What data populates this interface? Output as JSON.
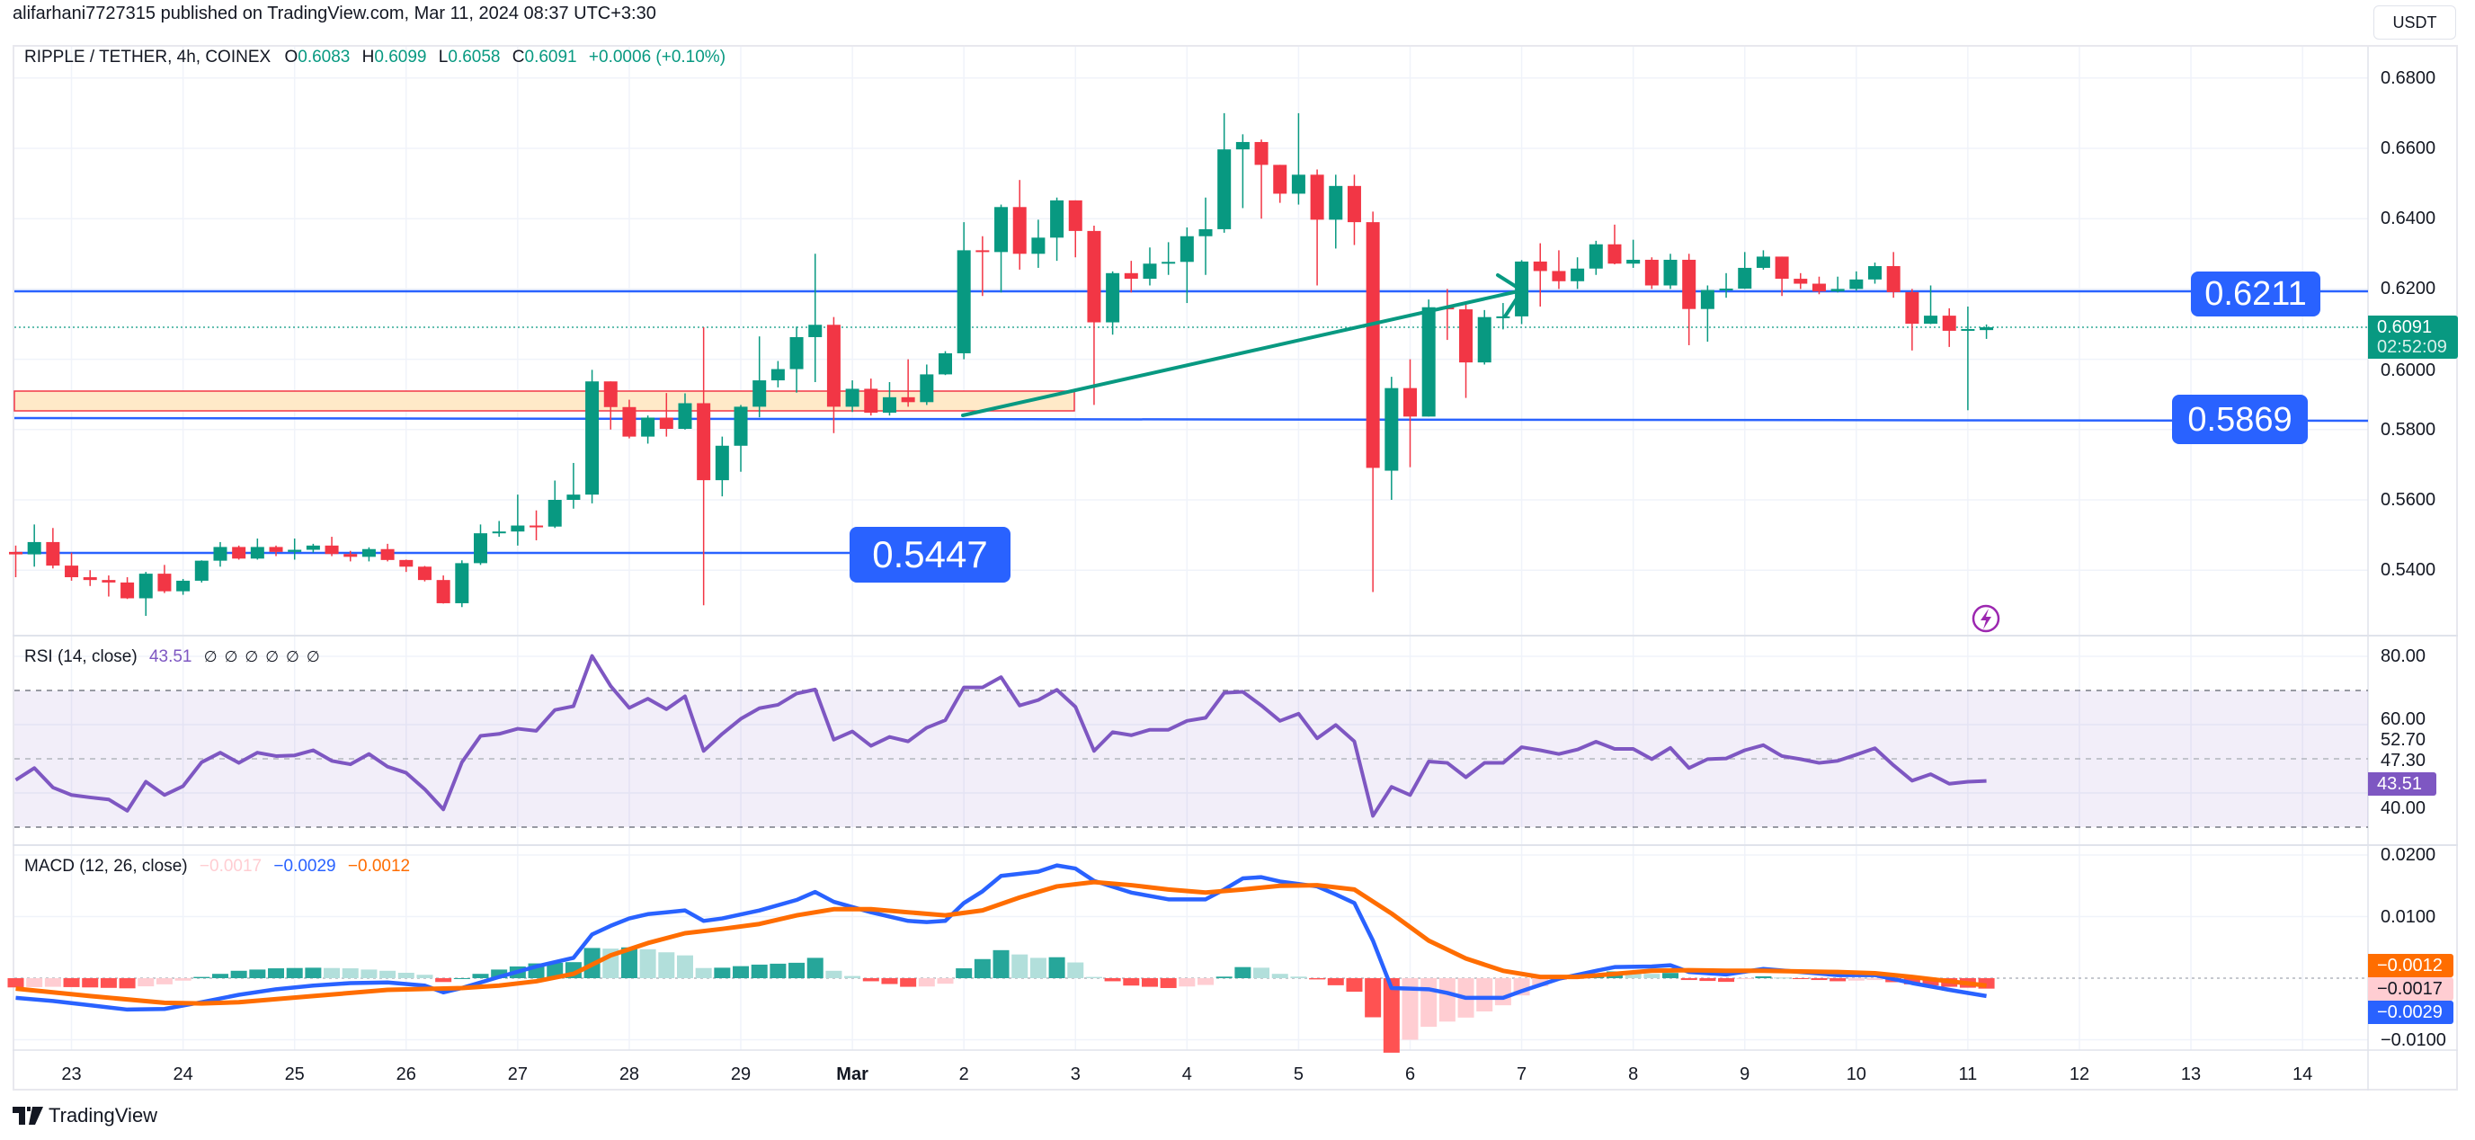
{
  "published": "alifarhani7727315 published on TradingView.com, Mar 11, 2024 08:37 UTC+3:30",
  "legend": {
    "symbol": "RIPPLE / TETHER, 4h, COINEX",
    "o_label": "O",
    "o": "0.6083",
    "h_label": "H",
    "h": "0.6099",
    "l_label": "L",
    "l": "0.6058",
    "c_label": "C",
    "c": "0.6091",
    "change": "+0.0006 (+0.10%)"
  },
  "currency_button": "USDT",
  "price_axis": [
    "0.6800",
    "0.6600",
    "0.6400",
    "0.6200",
    "0.6000",
    "0.5800",
    "0.5600",
    "0.5400"
  ],
  "price_axis_values": [
    0.68,
    0.66,
    0.64,
    0.62,
    0.6,
    0.58,
    0.56,
    0.54
  ],
  "current_price": {
    "value": "0.6091",
    "countdown": "02:52:09",
    "numeric": 0.6091
  },
  "drawings": {
    "levels": [
      {
        "label": "0.6211",
        "value": 0.6211
      },
      {
        "label": "0.5869",
        "value": 0.5869
      },
      {
        "label": "0.5447",
        "value": 0.5447
      }
    ],
    "zone": {
      "top": 0.604,
      "bottom": 0.587
    },
    "trend_arrow": {
      "from_index": 46,
      "from_price": 0.5855,
      "to_index": 74.5,
      "to_price": 0.62
    }
  },
  "rsi": {
    "title": "RSI (14, close)",
    "value": "43.51",
    "nulls": [
      "∅",
      "∅",
      "∅",
      "∅",
      "∅",
      "∅"
    ],
    "axis": [
      "80.00",
      "60.00",
      "52.70",
      "47.30",
      "40.00"
    ],
    "axis_values": [
      80,
      60,
      52.7,
      47.3,
      40
    ],
    "upper_band": 70,
    "lower_band": 30,
    "middle": 50,
    "color": "#7e57c2"
  },
  "macd": {
    "title": "MACD (12, 26, close)",
    "hist_value": "−0.0017",
    "macd_value": "−0.0029",
    "signal_value": "−0.0012",
    "axis": [
      "0.0200",
      "0.0100",
      "−0.0100"
    ],
    "axis_values": [
      0.02,
      0.01,
      -0.01
    ],
    "colors": {
      "macd": "#2962ff",
      "signal": "#ff6d00",
      "hist_up_strong": "#26a69a",
      "hist_up_weak": "#b2dfdb",
      "hist_down_strong": "#ff5252",
      "hist_down_weak": "#ffcdd2"
    }
  },
  "x_axis": [
    "23",
    "24",
    "25",
    "26",
    "27",
    "28",
    "29",
    "Mar",
    "2",
    "3",
    "4",
    "5",
    "6",
    "7",
    "8",
    "9",
    "10",
    "11",
    "12",
    "13",
    "14"
  ],
  "footer": "TradingView",
  "colors": {
    "up": "#089981",
    "down": "#f23645",
    "level": "#2962ff",
    "zone_fill": "#ffe9c8",
    "zone_border": "#f23645",
    "arrow": "#089981"
  },
  "chart_data": {
    "type": "candlestick",
    "title": "RIPPLE / TETHER, 4h, COINEX",
    "interval": "4h",
    "first_candle": "Feb 22 12:00",
    "ylim": [
      0.528,
      0.68
    ],
    "candles_ohlc": [
      [
        0.5452,
        0.547,
        0.538,
        0.5445
      ],
      [
        0.5445,
        0.553,
        0.541,
        0.548
      ],
      [
        0.548,
        0.552,
        0.5405,
        0.5413
      ],
      [
        0.5413,
        0.545,
        0.537,
        0.538
      ],
      [
        0.538,
        0.54,
        0.5355,
        0.5372
      ],
      [
        0.5372,
        0.5385,
        0.5325,
        0.5365
      ],
      [
        0.5365,
        0.538,
        0.5318,
        0.532
      ],
      [
        0.532,
        0.5395,
        0.527,
        0.539
      ],
      [
        0.539,
        0.5415,
        0.5335,
        0.534
      ],
      [
        0.534,
        0.5375,
        0.533,
        0.537
      ],
      [
        0.537,
        0.5428,
        0.5365,
        0.5427
      ],
      [
        0.5427,
        0.548,
        0.541,
        0.5466
      ],
      [
        0.5466,
        0.547,
        0.543,
        0.5433
      ],
      [
        0.5433,
        0.549,
        0.543,
        0.5466
      ],
      [
        0.5466,
        0.547,
        0.544,
        0.5452
      ],
      [
        0.5452,
        0.549,
        0.543,
        0.5458
      ],
      [
        0.5458,
        0.5475,
        0.545,
        0.547
      ],
      [
        0.547,
        0.5495,
        0.544,
        0.5446
      ],
      [
        0.5446,
        0.5455,
        0.5425,
        0.5438
      ],
      [
        0.5438,
        0.5465,
        0.5425,
        0.546
      ],
      [
        0.546,
        0.5475,
        0.5425,
        0.5429
      ],
      [
        0.5429,
        0.543,
        0.5395,
        0.541
      ],
      [
        0.541,
        0.5412,
        0.5368,
        0.5372
      ],
      [
        0.5372,
        0.5385,
        0.5305,
        0.5306
      ],
      [
        0.5306,
        0.5428,
        0.5295,
        0.542
      ],
      [
        0.542,
        0.553,
        0.5415,
        0.5505
      ],
      [
        0.5505,
        0.554,
        0.5495,
        0.551
      ],
      [
        0.551,
        0.5615,
        0.547,
        0.5527
      ],
      [
        0.5527,
        0.557,
        0.5485,
        0.5524
      ],
      [
        0.5524,
        0.5655,
        0.552,
        0.56
      ],
      [
        0.56,
        0.5705,
        0.5575,
        0.5615
      ],
      [
        0.5615,
        0.597,
        0.559,
        0.5937
      ],
      [
        0.5937,
        0.5937,
        0.58,
        0.5864
      ],
      [
        0.5864,
        0.5885,
        0.5775,
        0.578
      ],
      [
        0.578,
        0.584,
        0.576,
        0.5834
      ],
      [
        0.5834,
        0.5904,
        0.578,
        0.5802
      ],
      [
        0.5802,
        0.5903,
        0.58,
        0.5875
      ],
      [
        0.5875,
        0.6091,
        0.53,
        0.5656
      ],
      [
        0.5656,
        0.578,
        0.561,
        0.5754
      ],
      [
        0.5754,
        0.587,
        0.568,
        0.5865
      ],
      [
        0.5865,
        0.6065,
        0.5835,
        0.594
      ],
      [
        0.594,
        0.5995,
        0.592,
        0.5972
      ],
      [
        0.5972,
        0.6093,
        0.5905,
        0.6063
      ],
      [
        0.6063,
        0.63,
        0.5935,
        0.6098
      ],
      [
        0.6098,
        0.612,
        0.579,
        0.5865
      ],
      [
        0.5865,
        0.594,
        0.585,
        0.5916
      ],
      [
        0.5916,
        0.5945,
        0.584,
        0.5848
      ],
      [
        0.5848,
        0.5935,
        0.584,
        0.5892
      ],
      [
        0.5892,
        0.6,
        0.5865,
        0.5878
      ],
      [
        0.5878,
        0.5985,
        0.587,
        0.5957
      ],
      [
        0.5957,
        0.6023,
        0.5955,
        0.6017
      ],
      [
        0.6017,
        0.639,
        0.6,
        0.631
      ],
      [
        0.631,
        0.635,
        0.618,
        0.6305
      ],
      [
        0.6305,
        0.644,
        0.619,
        0.6433
      ],
      [
        0.6433,
        0.651,
        0.6255,
        0.63
      ],
      [
        0.63,
        0.6397,
        0.626,
        0.6346
      ],
      [
        0.6346,
        0.646,
        0.628,
        0.6452
      ],
      [
        0.6452,
        0.6452,
        0.629,
        0.6365
      ],
      [
        0.6365,
        0.638,
        0.587,
        0.6105
      ],
      [
        0.6105,
        0.625,
        0.607,
        0.6245
      ],
      [
        0.6245,
        0.628,
        0.619,
        0.6229
      ],
      [
        0.6229,
        0.6318,
        0.621,
        0.6272
      ],
      [
        0.6272,
        0.6333,
        0.624,
        0.6277
      ],
      [
        0.6277,
        0.6375,
        0.616,
        0.635
      ],
      [
        0.635,
        0.646,
        0.624,
        0.637
      ],
      [
        0.637,
        0.67,
        0.636,
        0.6597
      ],
      [
        0.6597,
        0.664,
        0.643,
        0.6618
      ],
      [
        0.6618,
        0.6625,
        0.64,
        0.6553
      ],
      [
        0.6553,
        0.6553,
        0.6445,
        0.6471
      ],
      [
        0.6471,
        0.67,
        0.644,
        0.6525
      ],
      [
        0.6525,
        0.654,
        0.621,
        0.6397
      ],
      [
        0.6397,
        0.6525,
        0.6315,
        0.6493
      ],
      [
        0.6493,
        0.6525,
        0.6325,
        0.639
      ],
      [
        0.639,
        0.642,
        0.5338,
        0.5691
      ],
      [
        0.5683,
        0.595,
        0.56,
        0.5918
      ],
      [
        0.5918,
        0.6,
        0.5693,
        0.5837
      ],
      [
        0.5837,
        0.617,
        0.5837,
        0.6148
      ],
      [
        0.6148,
        0.62,
        0.6055,
        0.6142
      ],
      [
        0.6142,
        0.616,
        0.589,
        0.5991
      ],
      [
        0.5991,
        0.614,
        0.5985,
        0.612
      ],
      [
        0.612,
        0.616,
        0.6085,
        0.6122
      ],
      [
        0.6122,
        0.6282,
        0.61,
        0.6278
      ],
      [
        0.6278,
        0.633,
        0.615,
        0.6251
      ],
      [
        0.6251,
        0.631,
        0.62,
        0.6222
      ],
      [
        0.6222,
        0.629,
        0.62,
        0.6258
      ],
      [
        0.6258,
        0.6337,
        0.624,
        0.6327
      ],
      [
        0.6327,
        0.6383,
        0.627,
        0.6272
      ],
      [
        0.6272,
        0.634,
        0.626,
        0.6283
      ],
      [
        0.6283,
        0.629,
        0.62,
        0.621
      ],
      [
        0.621,
        0.63,
        0.62,
        0.6283
      ],
      [
        0.6283,
        0.63,
        0.604,
        0.6143
      ],
      [
        0.6143,
        0.621,
        0.605,
        0.6197
      ],
      [
        0.6197,
        0.6245,
        0.6175,
        0.6201
      ],
      [
        0.6201,
        0.6305,
        0.62,
        0.626
      ],
      [
        0.626,
        0.631,
        0.6255,
        0.6292
      ],
      [
        0.6292,
        0.6292,
        0.618,
        0.6229
      ],
      [
        0.6229,
        0.6245,
        0.62,
        0.6215
      ],
      [
        0.6215,
        0.6235,
        0.6185,
        0.6193
      ],
      [
        0.6193,
        0.6235,
        0.619,
        0.62
      ],
      [
        0.62,
        0.625,
        0.6195,
        0.6227
      ],
      [
        0.6227,
        0.6275,
        0.6215,
        0.6265
      ],
      [
        0.6265,
        0.6305,
        0.6175,
        0.6191
      ],
      [
        0.6191,
        0.62,
        0.6025,
        0.6101
      ],
      [
        0.6101,
        0.621,
        0.61,
        0.6124
      ],
      [
        0.6124,
        0.6145,
        0.6035,
        0.6081
      ],
      [
        0.6081,
        0.615,
        0.5855,
        0.6086
      ],
      [
        0.6083,
        0.6099,
        0.6058,
        0.6091
      ]
    ],
    "rsi": [
      43.8,
      47.3,
      41.6,
      39.4,
      38.7,
      38.1,
      34.8,
      43.3,
      39.4,
      42,
      49,
      51.8,
      48.8,
      51.8,
      50.8,
      51,
      52.5,
      49.4,
      48.4,
      51.4,
      47.7,
      45.9,
      41.1,
      35.2,
      49,
      56.7,
      57.3,
      58.8,
      58.2,
      64.3,
      65.4,
      80.1,
      71.3,
      64.9,
      67.6,
      64.5,
      68.3,
      52.3,
      57.3,
      61.7,
      64.8,
      65.8,
      69.1,
      70.3,
      55.6,
      58,
      53.8,
      56.4,
      55.1,
      59.1,
      61.3,
      70.9,
      70.9,
      73.9,
      65.6,
      67.2,
      70.2,
      65.2,
      52.3,
      57.8,
      56.9,
      58.5,
      58.5,
      61.1,
      62,
      69.3,
      69.6,
      65.6,
      61.1,
      63.2,
      56,
      59.9,
      55.1,
      33.3,
      41.8,
      39.4,
      49.2,
      48.8,
      44.6,
      48.8,
      48.8,
      53.4,
      52.5,
      51.4,
      52.7,
      55,
      52.9,
      52.9,
      49.9,
      53.2,
      47.3,
      49.9,
      50.1,
      52.5,
      54,
      50.8,
      49.9,
      48.8,
      49.4,
      51.2,
      53.1,
      48.1,
      43.6,
      45.5,
      42.7,
      43.3,
      43.51
    ],
    "macd_points": [
      [
        0,
        -0.0032
      ],
      [
        2,
        -0.0037
      ],
      [
        4,
        -0.0044
      ],
      [
        6,
        -0.0051
      ],
      [
        8,
        -0.005
      ],
      [
        10,
        -0.0039
      ],
      [
        12,
        -0.0027
      ],
      [
        14,
        -0.0018
      ],
      [
        16,
        -0.0012
      ],
      [
        18,
        -0.0008
      ],
      [
        20,
        -0.0007
      ],
      [
        22,
        -0.0012
      ],
      [
        23,
        -0.0023
      ],
      [
        24,
        -0.0016
      ],
      [
        26,
        0.0002
      ],
      [
        28,
        0.0019
      ],
      [
        30,
        0.0033
      ],
      [
        31,
        0.0071
      ],
      [
        32,
        0.0085
      ],
      [
        33,
        0.0097
      ],
      [
        34,
        0.0104
      ],
      [
        35,
        0.0107
      ],
      [
        36,
        0.011
      ],
      [
        37,
        0.0093
      ],
      [
        38,
        0.0097
      ],
      [
        40,
        0.011
      ],
      [
        42,
        0.0127
      ],
      [
        43,
        0.014
      ],
      [
        44,
        0.0124
      ],
      [
        46,
        0.0107
      ],
      [
        48,
        0.0093
      ],
      [
        49,
        0.0091
      ],
      [
        50,
        0.0093
      ],
      [
        51,
        0.0122
      ],
      [
        52,
        0.0141
      ],
      [
        53,
        0.0166
      ],
      [
        55,
        0.0173
      ],
      [
        56,
        0.0183
      ],
      [
        57,
        0.0178
      ],
      [
        58,
        0.0158
      ],
      [
        60,
        0.0139
      ],
      [
        62,
        0.0128
      ],
      [
        64,
        0.0128
      ],
      [
        65,
        0.0144
      ],
      [
        66,
        0.0162
      ],
      [
        67,
        0.0164
      ],
      [
        68,
        0.0157
      ],
      [
        69,
        0.0153
      ],
      [
        70,
        0.0149
      ],
      [
        71,
        0.0136
      ],
      [
        72,
        0.0122
      ],
      [
        73,
        0.0061
      ],
      [
        74,
        -0.0016
      ],
      [
        75,
        -0.0017
      ],
      [
        76,
        -0.0018
      ],
      [
        77,
        -0.0024
      ],
      [
        78,
        -0.0032
      ],
      [
        80,
        -0.0032
      ],
      [
        81,
        -0.0021
      ],
      [
        83,
        -0.0001
      ],
      [
        85,
        0.0012
      ],
      [
        86,
        0.0018
      ],
      [
        88,
        0.0019
      ],
      [
        89,
        0.0021
      ],
      [
        90,
        0.001
      ],
      [
        92,
        0.0006
      ],
      [
        94,
        0.0015
      ],
      [
        96,
        0.001
      ],
      [
        98,
        0.0005
      ],
      [
        100,
        0.0005
      ],
      [
        102,
        -0.0008
      ],
      [
        104,
        -0.0019
      ],
      [
        106,
        -0.0029
      ]
    ],
    "signal_points": [
      [
        0,
        -0.0017
      ],
      [
        4,
        -0.0029
      ],
      [
        8,
        -0.004
      ],
      [
        10,
        -0.0041
      ],
      [
        12,
        -0.0039
      ],
      [
        16,
        -0.0029
      ],
      [
        20,
        -0.0019
      ],
      [
        24,
        -0.0016
      ],
      [
        26,
        -0.0012
      ],
      [
        28,
        -0.0005
      ],
      [
        30,
        0.0007
      ],
      [
        32,
        0.0037
      ],
      [
        34,
        0.0057
      ],
      [
        36,
        0.0073
      ],
      [
        38,
        0.008
      ],
      [
        40,
        0.0088
      ],
      [
        42,
        0.0102
      ],
      [
        44,
        0.0112
      ],
      [
        46,
        0.0112
      ],
      [
        48,
        0.0107
      ],
      [
        50,
        0.0102
      ],
      [
        52,
        0.011
      ],
      [
        54,
        0.0131
      ],
      [
        56,
        0.0149
      ],
      [
        58,
        0.0156
      ],
      [
        60,
        0.0151
      ],
      [
        62,
        0.0144
      ],
      [
        64,
        0.0139
      ],
      [
        66,
        0.0144
      ],
      [
        68,
        0.015
      ],
      [
        70,
        0.0151
      ],
      [
        72,
        0.0144
      ],
      [
        74,
        0.0105
      ],
      [
        76,
        0.0061
      ],
      [
        78,
        0.0032
      ],
      [
        80,
        0.0012
      ],
      [
        82,
        0.0002
      ],
      [
        84,
        0.0002
      ],
      [
        86,
        0.0007
      ],
      [
        88,
        0.0012
      ],
      [
        90,
        0.0013
      ],
      [
        92,
        0.0012
      ],
      [
        94,
        0.0012
      ],
      [
        96,
        0.0011
      ],
      [
        98,
        0.001
      ],
      [
        100,
        0.0008
      ],
      [
        102,
        0.0002
      ],
      [
        104,
        -0.0005
      ],
      [
        106,
        -0.0012
      ]
    ]
  }
}
